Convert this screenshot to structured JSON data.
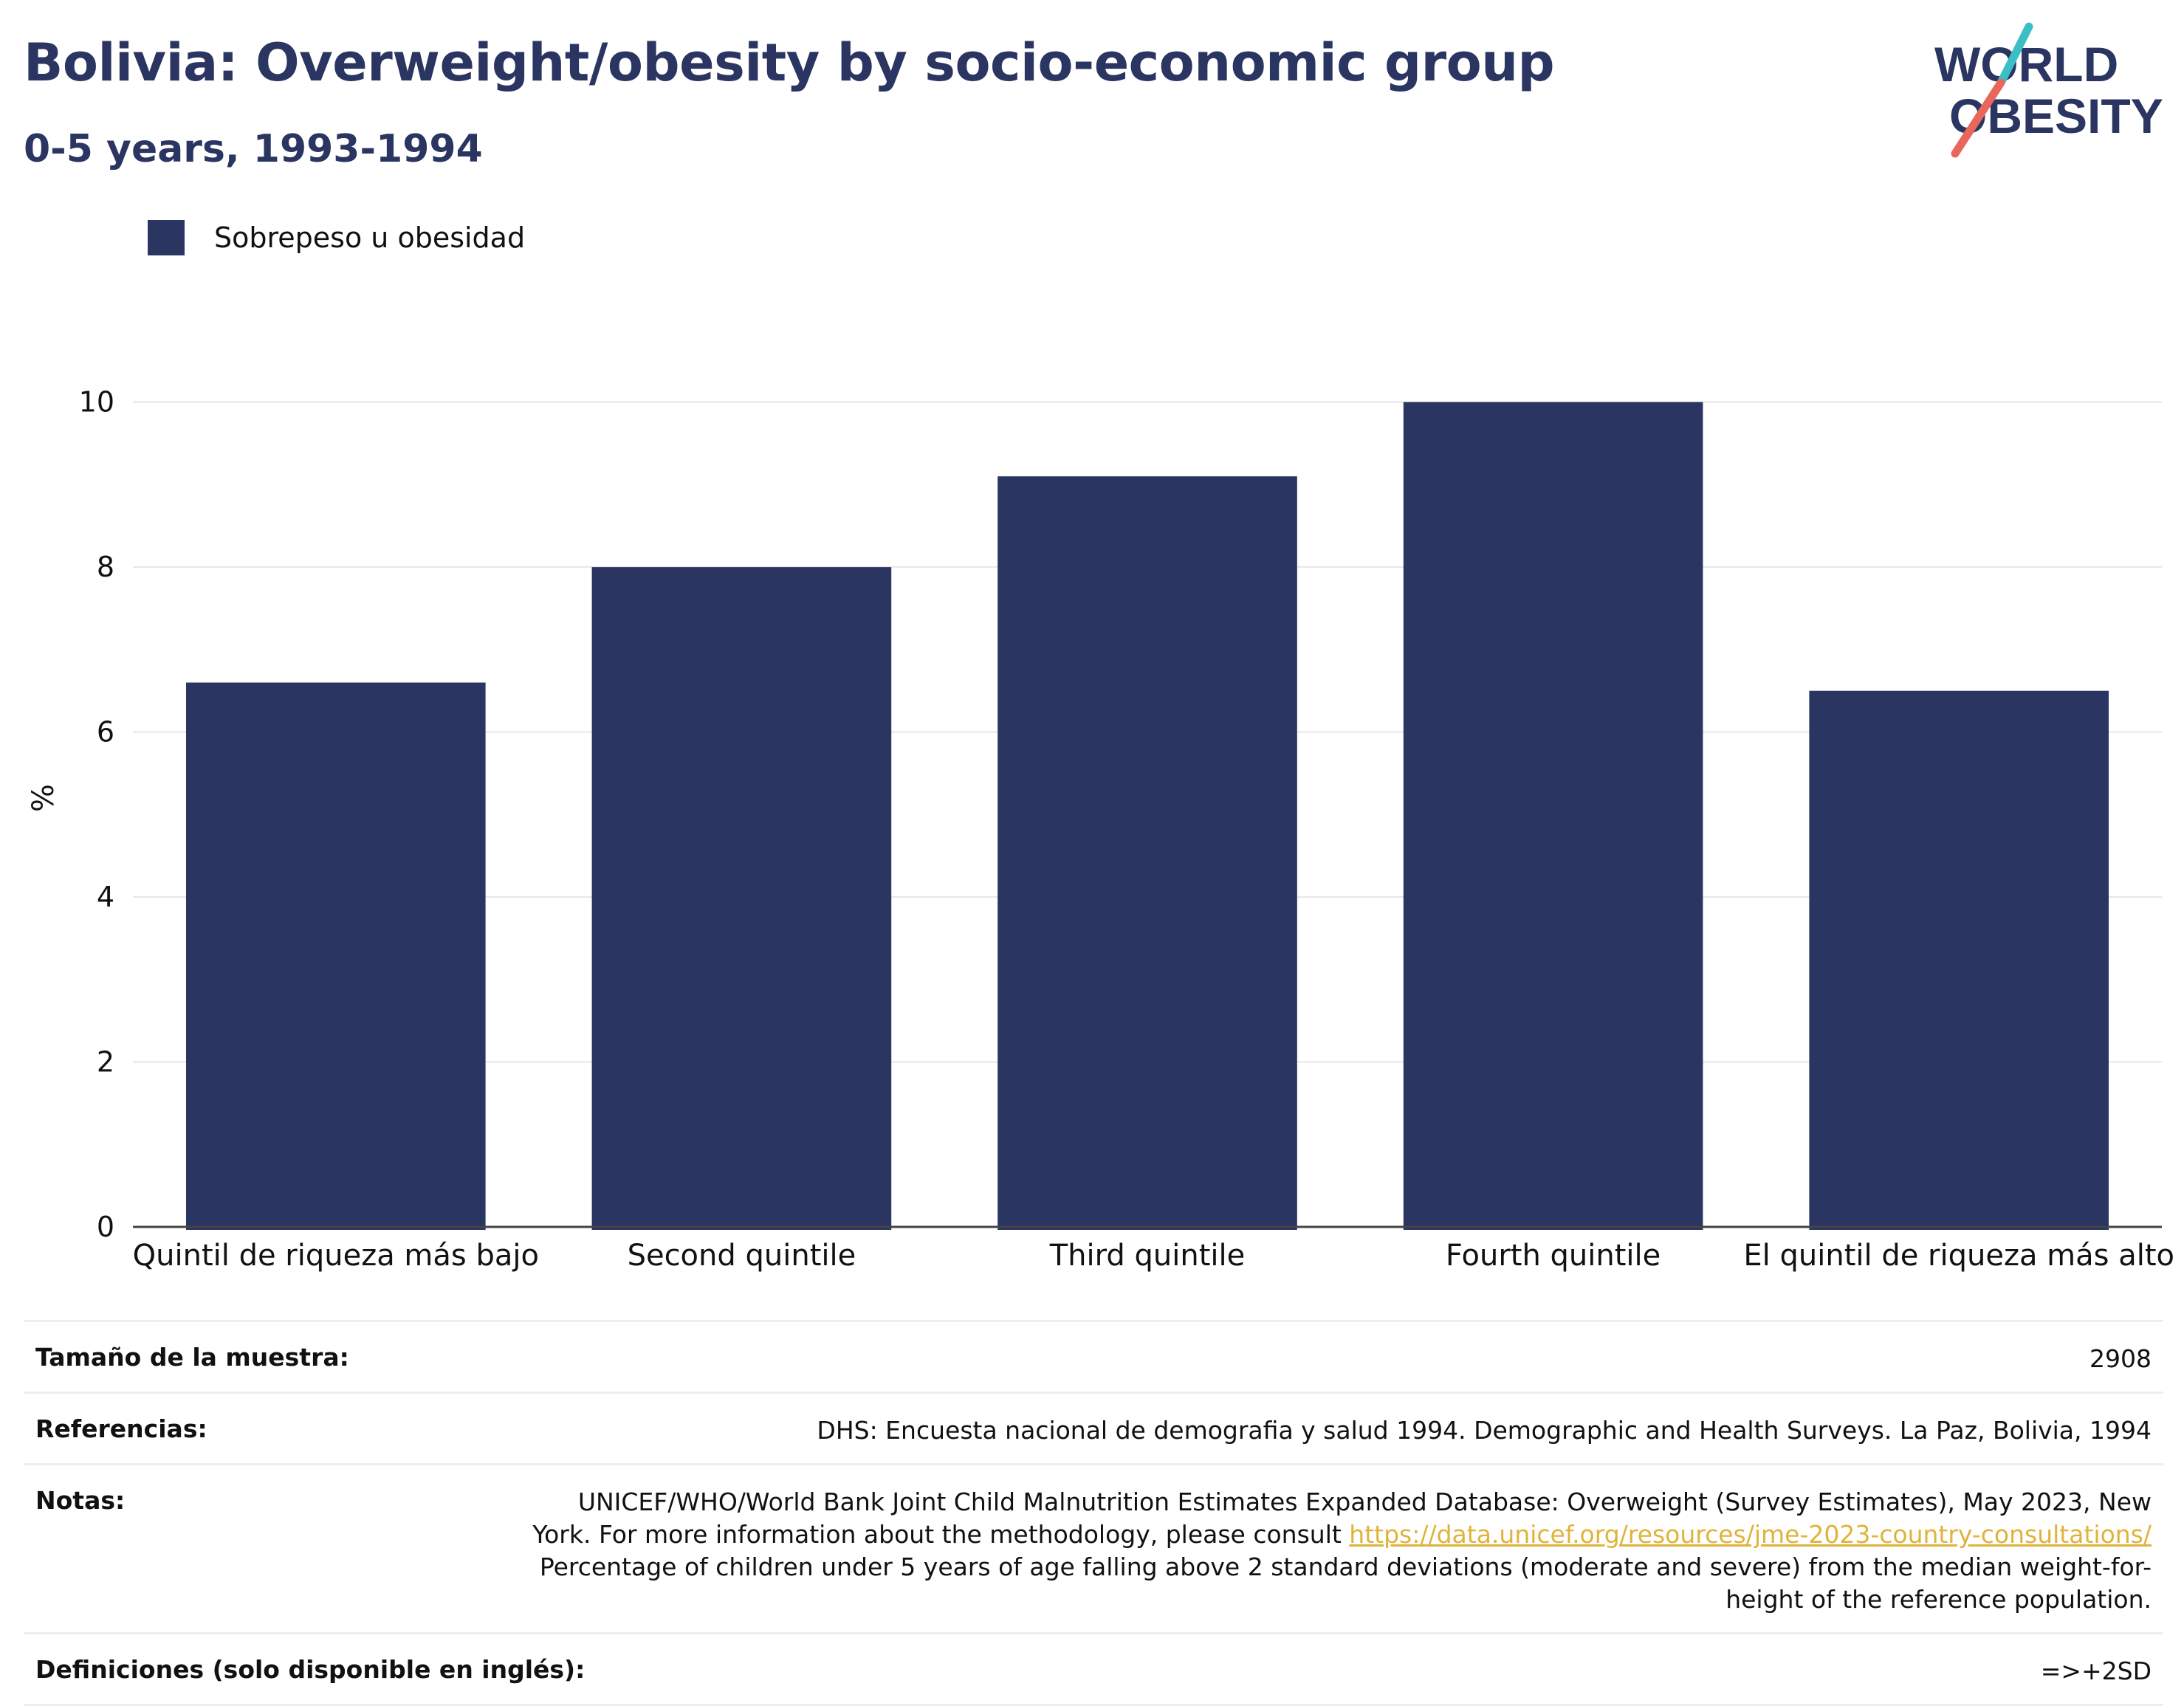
{
  "header": {
    "title": "Bolivia: Overweight/obesity by socio-economic group",
    "subtitle": "0-5 years, 1993-1994"
  },
  "logo": {
    "line1": "WORLD",
    "line2": "OBESITY",
    "accent_teal": "#3bbfc4",
    "accent_coral": "#e8675a"
  },
  "colors": {
    "bar": "#2a3561",
    "title": "#2a3561",
    "grid": "#e6e6e6",
    "link": "#e0b33a"
  },
  "chart_data": {
    "type": "bar",
    "ylabel": "%",
    "xlabel": "",
    "ylim": [
      0,
      10.4
    ],
    "yticks": [
      0,
      2,
      4,
      6,
      8,
      10
    ],
    "grid": true,
    "legend": "top-left",
    "categories": [
      "Quintil de riqueza más bajo",
      "Second quintile",
      "Third quintile",
      "Fourth quintile",
      "El quintil de riqueza más alto"
    ],
    "series": [
      {
        "name": "Sobrepeso u obesidad",
        "values": [
          6.6,
          8.0,
          9.1,
          10.0,
          6.5
        ]
      }
    ]
  },
  "meta": {
    "sample_label": "Tamaño de la muestra:",
    "sample_value": "2908",
    "refs_label": "Referencias:",
    "refs_value": "DHS: Encuesta nacional de demografia y salud 1994. Demographic and Health Surveys. La Paz, Bolivia, 1994",
    "notes_label": "Notas:",
    "notes_line1": "UNICEF/WHO/World Bank Joint Child Malnutrition Estimates Expanded Database: Overweight (Survey Estimates), May 2023, New",
    "notes_line2_text": "York. For more information about the methodology, please consult ",
    "notes_link": "https://data.unicef.org/resources/jme-2023-country-consultations/",
    "notes_line3": "Percentage of children under 5 years of age falling above 2 standard deviations (moderate and severe) from the median weight-for-",
    "notes_line4": "height of the reference population.",
    "defs_label": "Definiciones (solo disponible en inglés):",
    "defs_value": "=>+2SD"
  }
}
